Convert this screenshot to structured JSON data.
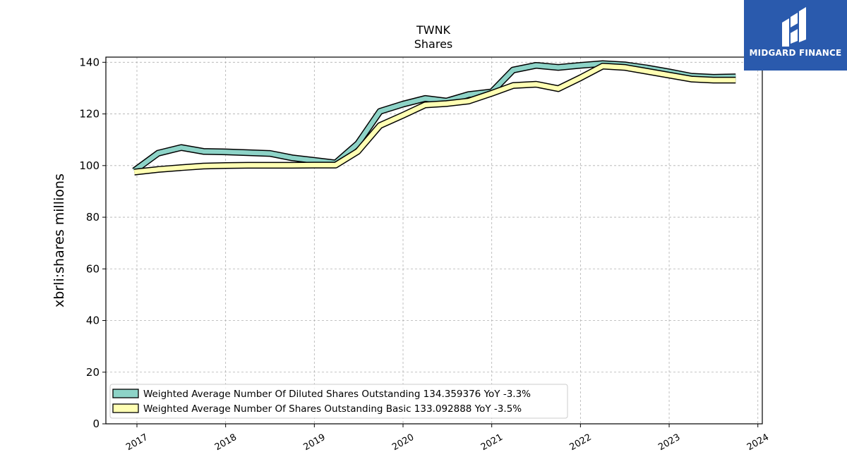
{
  "chart_data": {
    "type": "line",
    "title": "TWNK",
    "subtitle": "Shares",
    "ylabel": "xbrli:shares millions",
    "xlabel": "",
    "ylim": [
      0,
      142
    ],
    "yticks": [
      0,
      20,
      40,
      60,
      80,
      100,
      120,
      140
    ],
    "xlim": [
      2016.65,
      2024.05
    ],
    "xticks": [
      "2017",
      "2018",
      "2019",
      "2020",
      "2021",
      "2022",
      "2023",
      "2024"
    ],
    "grid": true,
    "legend_position": "lower-left",
    "series": [
      {
        "name": "Weighted Average Number Of Diluted Shares Outstanding  134.359376 YoY -3.3%",
        "color": "#8dd3c7",
        "points": [
          [
            2016.97,
            98.0
          ],
          [
            2017.24,
            104.8
          ],
          [
            2017.5,
            107.0
          ],
          [
            2017.75,
            105.5
          ],
          [
            2018.0,
            105.3
          ],
          [
            2018.25,
            105.0
          ],
          [
            2018.5,
            104.7
          ],
          [
            2018.75,
            103.0
          ],
          [
            2019.0,
            102.0
          ],
          [
            2019.24,
            101.0
          ],
          [
            2019.49,
            108.5
          ],
          [
            2019.74,
            121.0
          ],
          [
            2020.0,
            123.8
          ],
          [
            2020.25,
            126.0
          ],
          [
            2020.49,
            125.0
          ],
          [
            2020.74,
            127.5
          ],
          [
            2021.0,
            128.5
          ],
          [
            2021.24,
            137.0
          ],
          [
            2021.5,
            138.8
          ],
          [
            2021.75,
            138.0
          ],
          [
            2022.0,
            138.8
          ],
          [
            2022.25,
            139.5
          ],
          [
            2022.5,
            139.0
          ],
          [
            2022.75,
            137.8
          ],
          [
            2023.0,
            136.3
          ],
          [
            2023.25,
            134.6
          ],
          [
            2023.5,
            134.2
          ],
          [
            2023.75,
            134.36
          ]
        ]
      },
      {
        "name": "Weighted Average Number Of Shares Outstanding Basic  133.092888 YoY -3.5%",
        "color": "#ffffb3",
        "points": [
          [
            2016.97,
            97.5
          ],
          [
            2017.24,
            98.5
          ],
          [
            2017.5,
            99.2
          ],
          [
            2017.75,
            99.8
          ],
          [
            2018.0,
            100.0
          ],
          [
            2018.25,
            100.1
          ],
          [
            2018.5,
            100.1
          ],
          [
            2018.75,
            100.1
          ],
          [
            2019.0,
            100.2
          ],
          [
            2019.24,
            100.2
          ],
          [
            2019.49,
            105.5
          ],
          [
            2019.74,
            115.5
          ],
          [
            2020.0,
            119.5
          ],
          [
            2020.25,
            123.5
          ],
          [
            2020.49,
            124.0
          ],
          [
            2020.74,
            125.0
          ],
          [
            2021.0,
            128.0
          ],
          [
            2021.24,
            131.0
          ],
          [
            2021.5,
            131.5
          ],
          [
            2021.75,
            129.8
          ],
          [
            2022.0,
            134.0
          ],
          [
            2022.25,
            138.5
          ],
          [
            2022.5,
            138.0
          ],
          [
            2022.75,
            136.5
          ],
          [
            2023.0,
            135.0
          ],
          [
            2023.25,
            133.5
          ],
          [
            2023.5,
            133.1
          ],
          [
            2023.75,
            133.09
          ]
        ]
      }
    ]
  },
  "logo": {
    "text": "MIDGARD FINANCE",
    "background": "#2a5aad",
    "icon": "midgard-logo-icon"
  }
}
